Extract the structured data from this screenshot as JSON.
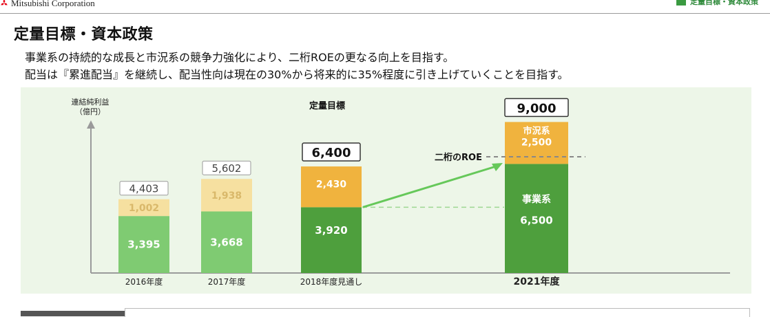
{
  "header": {
    "company": "Mitsubishi Corporation",
    "corner_tag": "定量目標・資本政策"
  },
  "page": {
    "title": "定量目標・資本政策",
    "line1": "事業系の持続的な成長と市況系の競争力強化により、二桁ROEの更なる向上を目指す。",
    "line2": "配当は『累進配当』を継続し、配当性向は現在の30%から将来的に35%程度に引き上げていくことを目指す。"
  },
  "colors": {
    "panel_bg": "#edf6e8",
    "business_past": "#7fcb72",
    "market_past": "#f6e0a0",
    "business_main": "#4e9f3d",
    "market_main": "#f0b33e",
    "arrow": "#66c85a",
    "dashed_gray": "#888888"
  },
  "chart_data": {
    "type": "bar",
    "stacked": true,
    "ylabel": "連結純利益\n（億円）",
    "section_label": "定量目標",
    "categories": [
      "2016年度",
      "2017年度",
      "2018年度見通し",
      "2021年度"
    ],
    "series": [
      {
        "name": "事業系",
        "values": [
          3395,
          3668,
          3920,
          6500
        ]
      },
      {
        "name": "市況系",
        "values": [
          1002,
          1938,
          2430,
          2500
        ]
      }
    ],
    "totals": [
      "4,403",
      "5,602",
      "6,400",
      "9,000"
    ],
    "value_labels": {
      "business": [
        "3,395",
        "3,668",
        "3,920",
        "6,500"
      ],
      "market": [
        "1,002",
        "1,938",
        "2,430",
        "2,500"
      ]
    },
    "final_bar_labels": {
      "market": "市況系",
      "business": "事業系"
    },
    "roe_label": "二桁のROE",
    "highlight_category": "2021年度"
  }
}
